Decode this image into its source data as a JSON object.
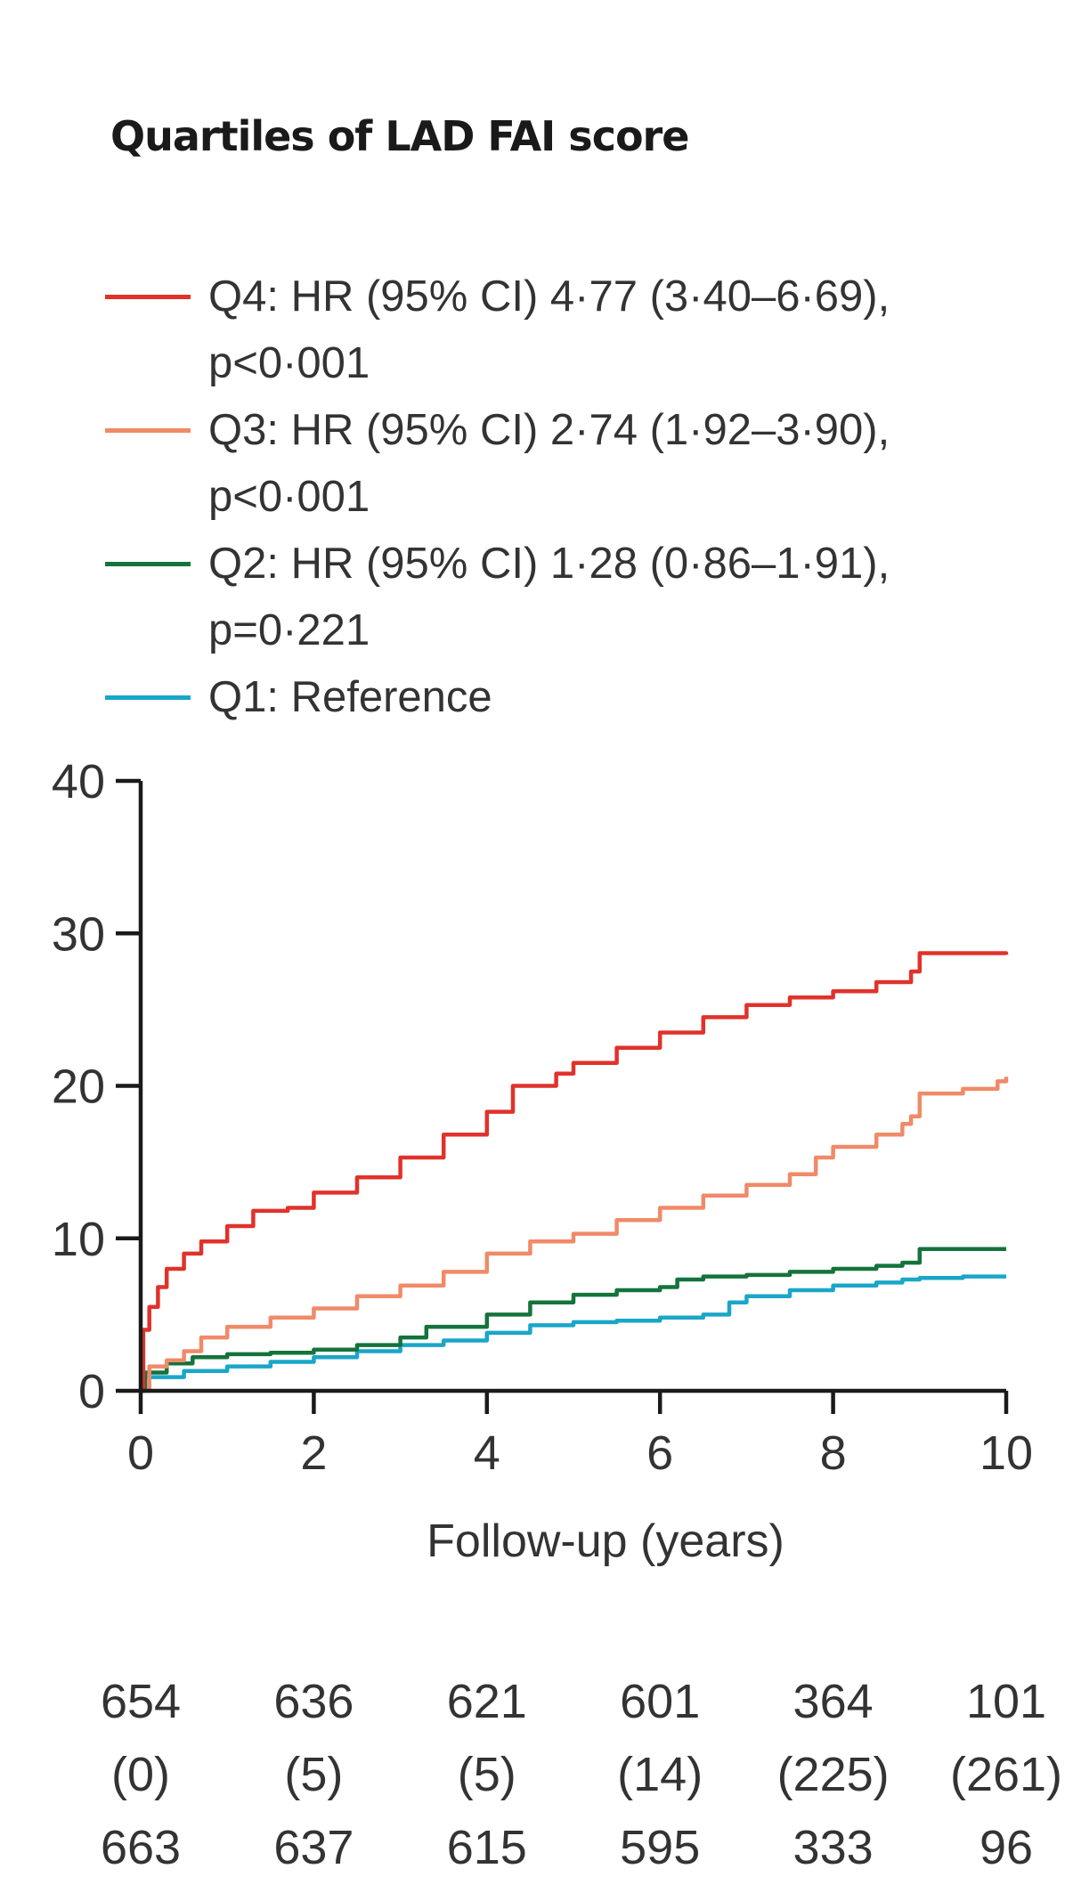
{
  "title": "Quartiles of LAD FAI score",
  "legend": [
    {
      "key": "Q4",
      "text": "Q4: HR (95% CI) 4·77 (3·40–6·69),\np<0·001",
      "color": "#e0322b"
    },
    {
      "key": "Q3",
      "text": "Q3: HR (95% CI) 2·74 (1·92–3·90),\np<0·001",
      "color": "#f08a68"
    },
    {
      "key": "Q2",
      "text": "Q2: HR (95% CI) 1·28 (0·86–1·91),\np=0·221",
      "color": "#14733c"
    },
    {
      "key": "Q1",
      "text": "Q1: Reference",
      "color": "#1aa6c8"
    }
  ],
  "chart_data": {
    "type": "line",
    "title": "Quartiles of LAD FAI score",
    "xlabel": "Follow-up (years)",
    "ylabel": "",
    "xlim": [
      0,
      10
    ],
    "ylim": [
      0,
      40
    ],
    "xticks": [
      "0",
      "2",
      "4",
      "6",
      "8",
      "10"
    ],
    "yticks": [
      "0",
      "10",
      "20",
      "30",
      "40"
    ],
    "grid": false,
    "legend_position": "top",
    "series": [
      {
        "name": "Q4",
        "color": "#e0322b",
        "step": true,
        "x": [
          0,
          0.03,
          0.1,
          0.2,
          0.3,
          0.5,
          0.7,
          1.0,
          1.3,
          1.7,
          2.0,
          2.5,
          3.0,
          3.5,
          4.0,
          4.3,
          4.8,
          5.0,
          5.5,
          6.0,
          6.5,
          7.0,
          7.5,
          8.0,
          8.5,
          8.9,
          9.0,
          9.5,
          10.0
        ],
        "y": [
          0,
          4.0,
          5.5,
          6.8,
          8.0,
          9.0,
          9.8,
          10.8,
          11.8,
          12.0,
          13.0,
          14.0,
          15.3,
          16.8,
          18.3,
          20.0,
          20.8,
          21.5,
          22.5,
          23.5,
          24.5,
          25.3,
          25.8,
          26.2,
          26.8,
          27.5,
          28.7,
          28.7,
          28.6
        ]
      },
      {
        "name": "Q3",
        "color": "#f08a68",
        "step": true,
        "x": [
          0,
          0.1,
          0.3,
          0.5,
          0.7,
          1.0,
          1.5,
          2.0,
          2.5,
          3.0,
          3.5,
          4.0,
          4.5,
          5.0,
          5.5,
          6.0,
          6.5,
          7.0,
          7.5,
          7.8,
          8.0,
          8.5,
          8.8,
          8.9,
          9.0,
          9.5,
          9.9,
          10.0
        ],
        "y": [
          0,
          1.6,
          2.0,
          2.6,
          3.5,
          4.2,
          4.8,
          5.4,
          6.2,
          6.9,
          7.8,
          9.0,
          9.8,
          10.3,
          11.2,
          12.0,
          12.8,
          13.5,
          14.2,
          15.3,
          16.0,
          16.8,
          17.5,
          18.0,
          19.5,
          19.8,
          20.3,
          20.6
        ]
      },
      {
        "name": "Q2",
        "color": "#14733c",
        "step": true,
        "x": [
          0,
          0.05,
          0.3,
          0.6,
          1.0,
          1.5,
          2.0,
          2.5,
          3.0,
          3.3,
          4.0,
          4.5,
          5.0,
          5.5,
          6.0,
          6.2,
          6.5,
          7.0,
          7.5,
          8.0,
          8.5,
          8.8,
          9.0,
          9.5,
          10.0
        ],
        "y": [
          0,
          1.2,
          1.8,
          2.2,
          2.4,
          2.5,
          2.7,
          3.0,
          3.5,
          4.2,
          5.0,
          5.8,
          6.3,
          6.6,
          6.8,
          7.3,
          7.5,
          7.6,
          7.8,
          8.0,
          8.2,
          8.4,
          9.3,
          9.3,
          9.3
        ]
      },
      {
        "name": "Q1",
        "color": "#1aa6c8",
        "step": true,
        "x": [
          0,
          0.05,
          0.5,
          1.0,
          1.5,
          2.0,
          2.5,
          3.0,
          3.5,
          4.0,
          4.5,
          5.0,
          5.5,
          6.0,
          6.5,
          6.8,
          7.0,
          7.5,
          8.0,
          8.5,
          8.8,
          9.0,
          9.5,
          10.0
        ],
        "y": [
          0,
          0.9,
          1.3,
          1.6,
          1.9,
          2.2,
          2.6,
          3.0,
          3.3,
          3.8,
          4.3,
          4.5,
          4.6,
          4.8,
          5.0,
          5.8,
          6.2,
          6.6,
          6.9,
          7.1,
          7.3,
          7.4,
          7.5,
          7.5
        ]
      }
    ]
  },
  "at_risk": {
    "columns_x": [
      0,
      2,
      4,
      6,
      8,
      10
    ],
    "rows": [
      [
        "654",
        "636",
        "621",
        "601",
        "364",
        "101"
      ],
      [
        "(0)",
        "(5)",
        "(5)",
        "(14)",
        "(225)",
        "(261)"
      ],
      [
        "663",
        "637",
        "615",
        "595",
        "333",
        "96"
      ]
    ]
  }
}
